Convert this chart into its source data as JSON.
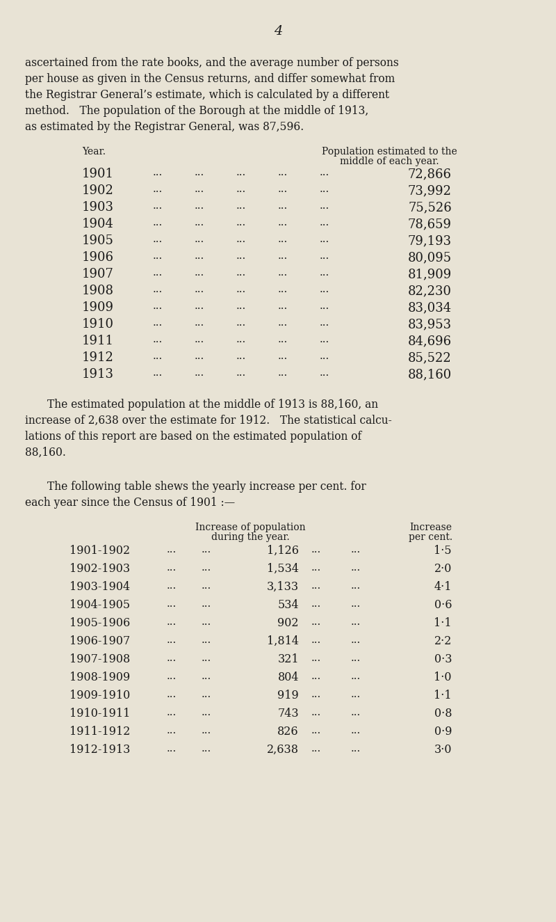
{
  "bg_color": "#e8e3d5",
  "text_color": "#1a1a1a",
  "page_number": "4",
  "intro_text": [
    "ascertained from the rate books, and the average number of persons",
    "per house as given in the Census returns, and differ somewhat from",
    "the Registrar General’s estimate, which is calculated by a different",
    "method.   The population of the Borough at the middle of 1913,",
    "as estimated by the Registrar General, was 87,596."
  ],
  "table1_header_col1": "Year.",
  "table1_header_col2_line1": "Population estimated to the",
  "table1_header_col2_line2": "middle of each year.",
  "table1_rows": [
    [
      "1901",
      "72,866"
    ],
    [
      "1902",
      "73,992"
    ],
    [
      "1903",
      "75,526"
    ],
    [
      "1904",
      "78,659"
    ],
    [
      "1905",
      "79,193"
    ],
    [
      "1906",
      "80,095"
    ],
    [
      "1907",
      "81,909"
    ],
    [
      "1908",
      "82,230"
    ],
    [
      "1909",
      "83,034"
    ],
    [
      "1910",
      "83,953"
    ],
    [
      "1911",
      "84,696"
    ],
    [
      "1912",
      "85,522"
    ],
    [
      "1913",
      "88,160"
    ]
  ],
  "middle_text": [
    "The estimated population at the middle of 1913 is 88,160, an",
    "increase of 2,638 over the estimate for 1912.   The statistical calcu-",
    "lations of this report are based on the estimated population of",
    "88,160."
  ],
  "following_text": [
    "The following table shews the yearly increase per cent. for",
    "each year since the Census of 1901 :—"
  ],
  "table2_header_col2_line1": "Increase of population",
  "table2_header_col2_line2": "during the year.",
  "table2_header_col3_line1": "Increase",
  "table2_header_col3_line2": "per cent.",
  "table2_rows": [
    [
      "1901-1902",
      "1,126",
      "1·5"
    ],
    [
      "1902-1903",
      "1,534",
      "2·0"
    ],
    [
      "1903-1904",
      "3,133",
      "4·1"
    ],
    [
      "1904-1905",
      "534",
      "0·6"
    ],
    [
      "1905-1906",
      "902",
      "1·1"
    ],
    [
      "1906-1907",
      "1,814",
      "2·2"
    ],
    [
      "1907-1908",
      "321",
      "0·3"
    ],
    [
      "1908-1909",
      "804",
      "1·0"
    ],
    [
      "1909-1910",
      "919",
      "1·1"
    ],
    [
      "1910-1911",
      "743",
      "0·8"
    ],
    [
      "1911-1912",
      "826",
      "0·9"
    ],
    [
      "1912-1913",
      "2,638",
      "3·0"
    ]
  ]
}
